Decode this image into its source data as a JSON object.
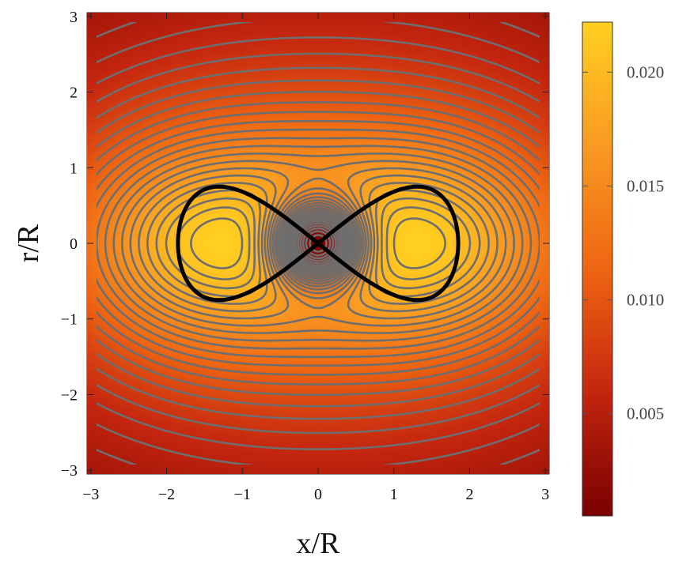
{
  "chart_data": {
    "type": "heatmap",
    "subtype": "contour density plot",
    "title": "",
    "xlabel": "x/R",
    "ylabel": "r/R",
    "xlim": [
      -3.05,
      3.05
    ],
    "ylim": [
      -3.05,
      3.05
    ],
    "x_ticks": [
      -3,
      -2,
      -1,
      0,
      1,
      2,
      3
    ],
    "y_ticks": [
      -3,
      -2,
      -1,
      0,
      1,
      2,
      3
    ],
    "x_tick_labels": [
      "−3",
      "−2",
      "−1",
      "0",
      "1",
      "2",
      "3"
    ],
    "y_tick_labels": [
      "−3",
      "−2",
      "−1",
      "0",
      "1",
      "2",
      "3"
    ],
    "colorbar": {
      "range": [
        0.0005,
        0.0222
      ],
      "ticks": [
        0.005,
        0.01,
        0.015,
        0.02
      ],
      "tick_labels": [
        "0.005",
        "0.010",
        "0.015",
        "0.020"
      ],
      "colormap": [
        "#7a0000",
        "#c4260f",
        "#ef6512",
        "#f99a22",
        "#ffd020"
      ]
    },
    "contour_color": "#6e6e6e",
    "max_value": 0.0222,
    "min_value_at_origin": 0.0005,
    "maxima_at": [
      [
        -1.5,
        0
      ],
      [
        1.5,
        0
      ]
    ],
    "overlay_curve": {
      "type": "figure-eight (lemniscate) boundary",
      "color": "#000000",
      "x_extent": [
        -1.85,
        1.85
      ],
      "r_extent": [
        -0.75,
        0.75
      ],
      "crossing_point": [
        0,
        0
      ]
    }
  }
}
